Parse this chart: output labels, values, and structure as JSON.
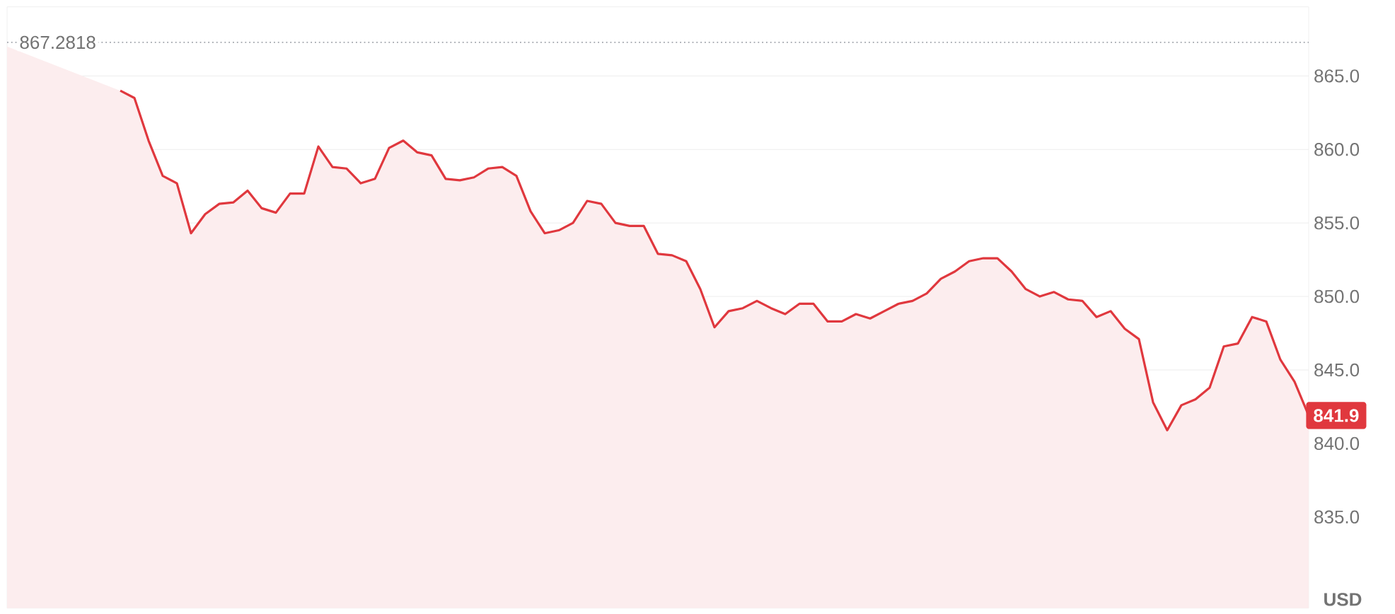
{
  "chart_data": {
    "type": "area",
    "ylabel": "USD",
    "categories": [
      null,
      null,
      null,
      null,
      null,
      null,
      null,
      null,
      null,
      null,
      null,
      null,
      null,
      null,
      null,
      null,
      null,
      null,
      null,
      null,
      null,
      null,
      null,
      null,
      null,
      null,
      null,
      null,
      null,
      null,
      null,
      null,
      null,
      null,
      null,
      null,
      null,
      null,
      null,
      null,
      null,
      null,
      null,
      null,
      null,
      null,
      null,
      null,
      null,
      null,
      null,
      null,
      null,
      null,
      null,
      null,
      null,
      null,
      null,
      null,
      null,
      null,
      null,
      null,
      null,
      null,
      null,
      null,
      null,
      null,
      null,
      null,
      null,
      null,
      null,
      null,
      null,
      null,
      null,
      null,
      null,
      null,
      null,
      null,
      null,
      null,
      null,
      null,
      null,
      null,
      null,
      null,
      null
    ],
    "series": [
      {
        "color": "#e0383e",
        "values": [
          867.0,
          null,
          null,
          null,
          null,
          null,
          null,
          null,
          864.0,
          863.5,
          860.6,
          858.2,
          857.7,
          854.3,
          855.6,
          856.3,
          856.4,
          857.2,
          856.0,
          855.7,
          857.0,
          857.0,
          860.2,
          858.8,
          858.7,
          857.7,
          858.0,
          860.1,
          860.6,
          859.8,
          859.6,
          858.0,
          857.9,
          858.1,
          858.7,
          858.8,
          858.2,
          855.8,
          854.3,
          854.5,
          855.0,
          856.5,
          856.3,
          855.0,
          854.8,
          854.8,
          852.9,
          852.8,
          852.4,
          850.5,
          847.9,
          849.0,
          849.2,
          849.7,
          849.2,
          848.8,
          849.5,
          849.5,
          848.3,
          848.3,
          848.8,
          848.5,
          849.0,
          849.5,
          849.7,
          850.2,
          851.2,
          851.7,
          852.4,
          852.6,
          852.6,
          851.7,
          850.5,
          850.0,
          850.3,
          849.8,
          849.7,
          848.6,
          849.0,
          847.8,
          847.1,
          842.8,
          840.9,
          842.6,
          843.0,
          843.8,
          846.6,
          846.8,
          848.6,
          848.3,
          845.7,
          844.2,
          841.9
        ]
      }
    ],
    "ylim": [
      828.8,
      869.7
    ],
    "yticks": [
      {
        "value": 835,
        "label": "835.0"
      },
      {
        "value": 840,
        "label": "840.0"
      },
      {
        "value": 845,
        "label": "845.0"
      },
      {
        "value": 850,
        "label": "850.0"
      },
      {
        "value": 855,
        "label": "855.0"
      },
      {
        "value": 860,
        "label": "860.0"
      },
      {
        "value": 865,
        "label": "865.0"
      }
    ],
    "grid": "y",
    "ref_lines": [
      {
        "axis": "y",
        "value": 867.2818,
        "label": "867.2818",
        "color": "#a0a4ab",
        "line_style": "dotted"
      }
    ],
    "annotations": [
      {
        "text": "841.9",
        "y": 841.9
      }
    ]
  }
}
